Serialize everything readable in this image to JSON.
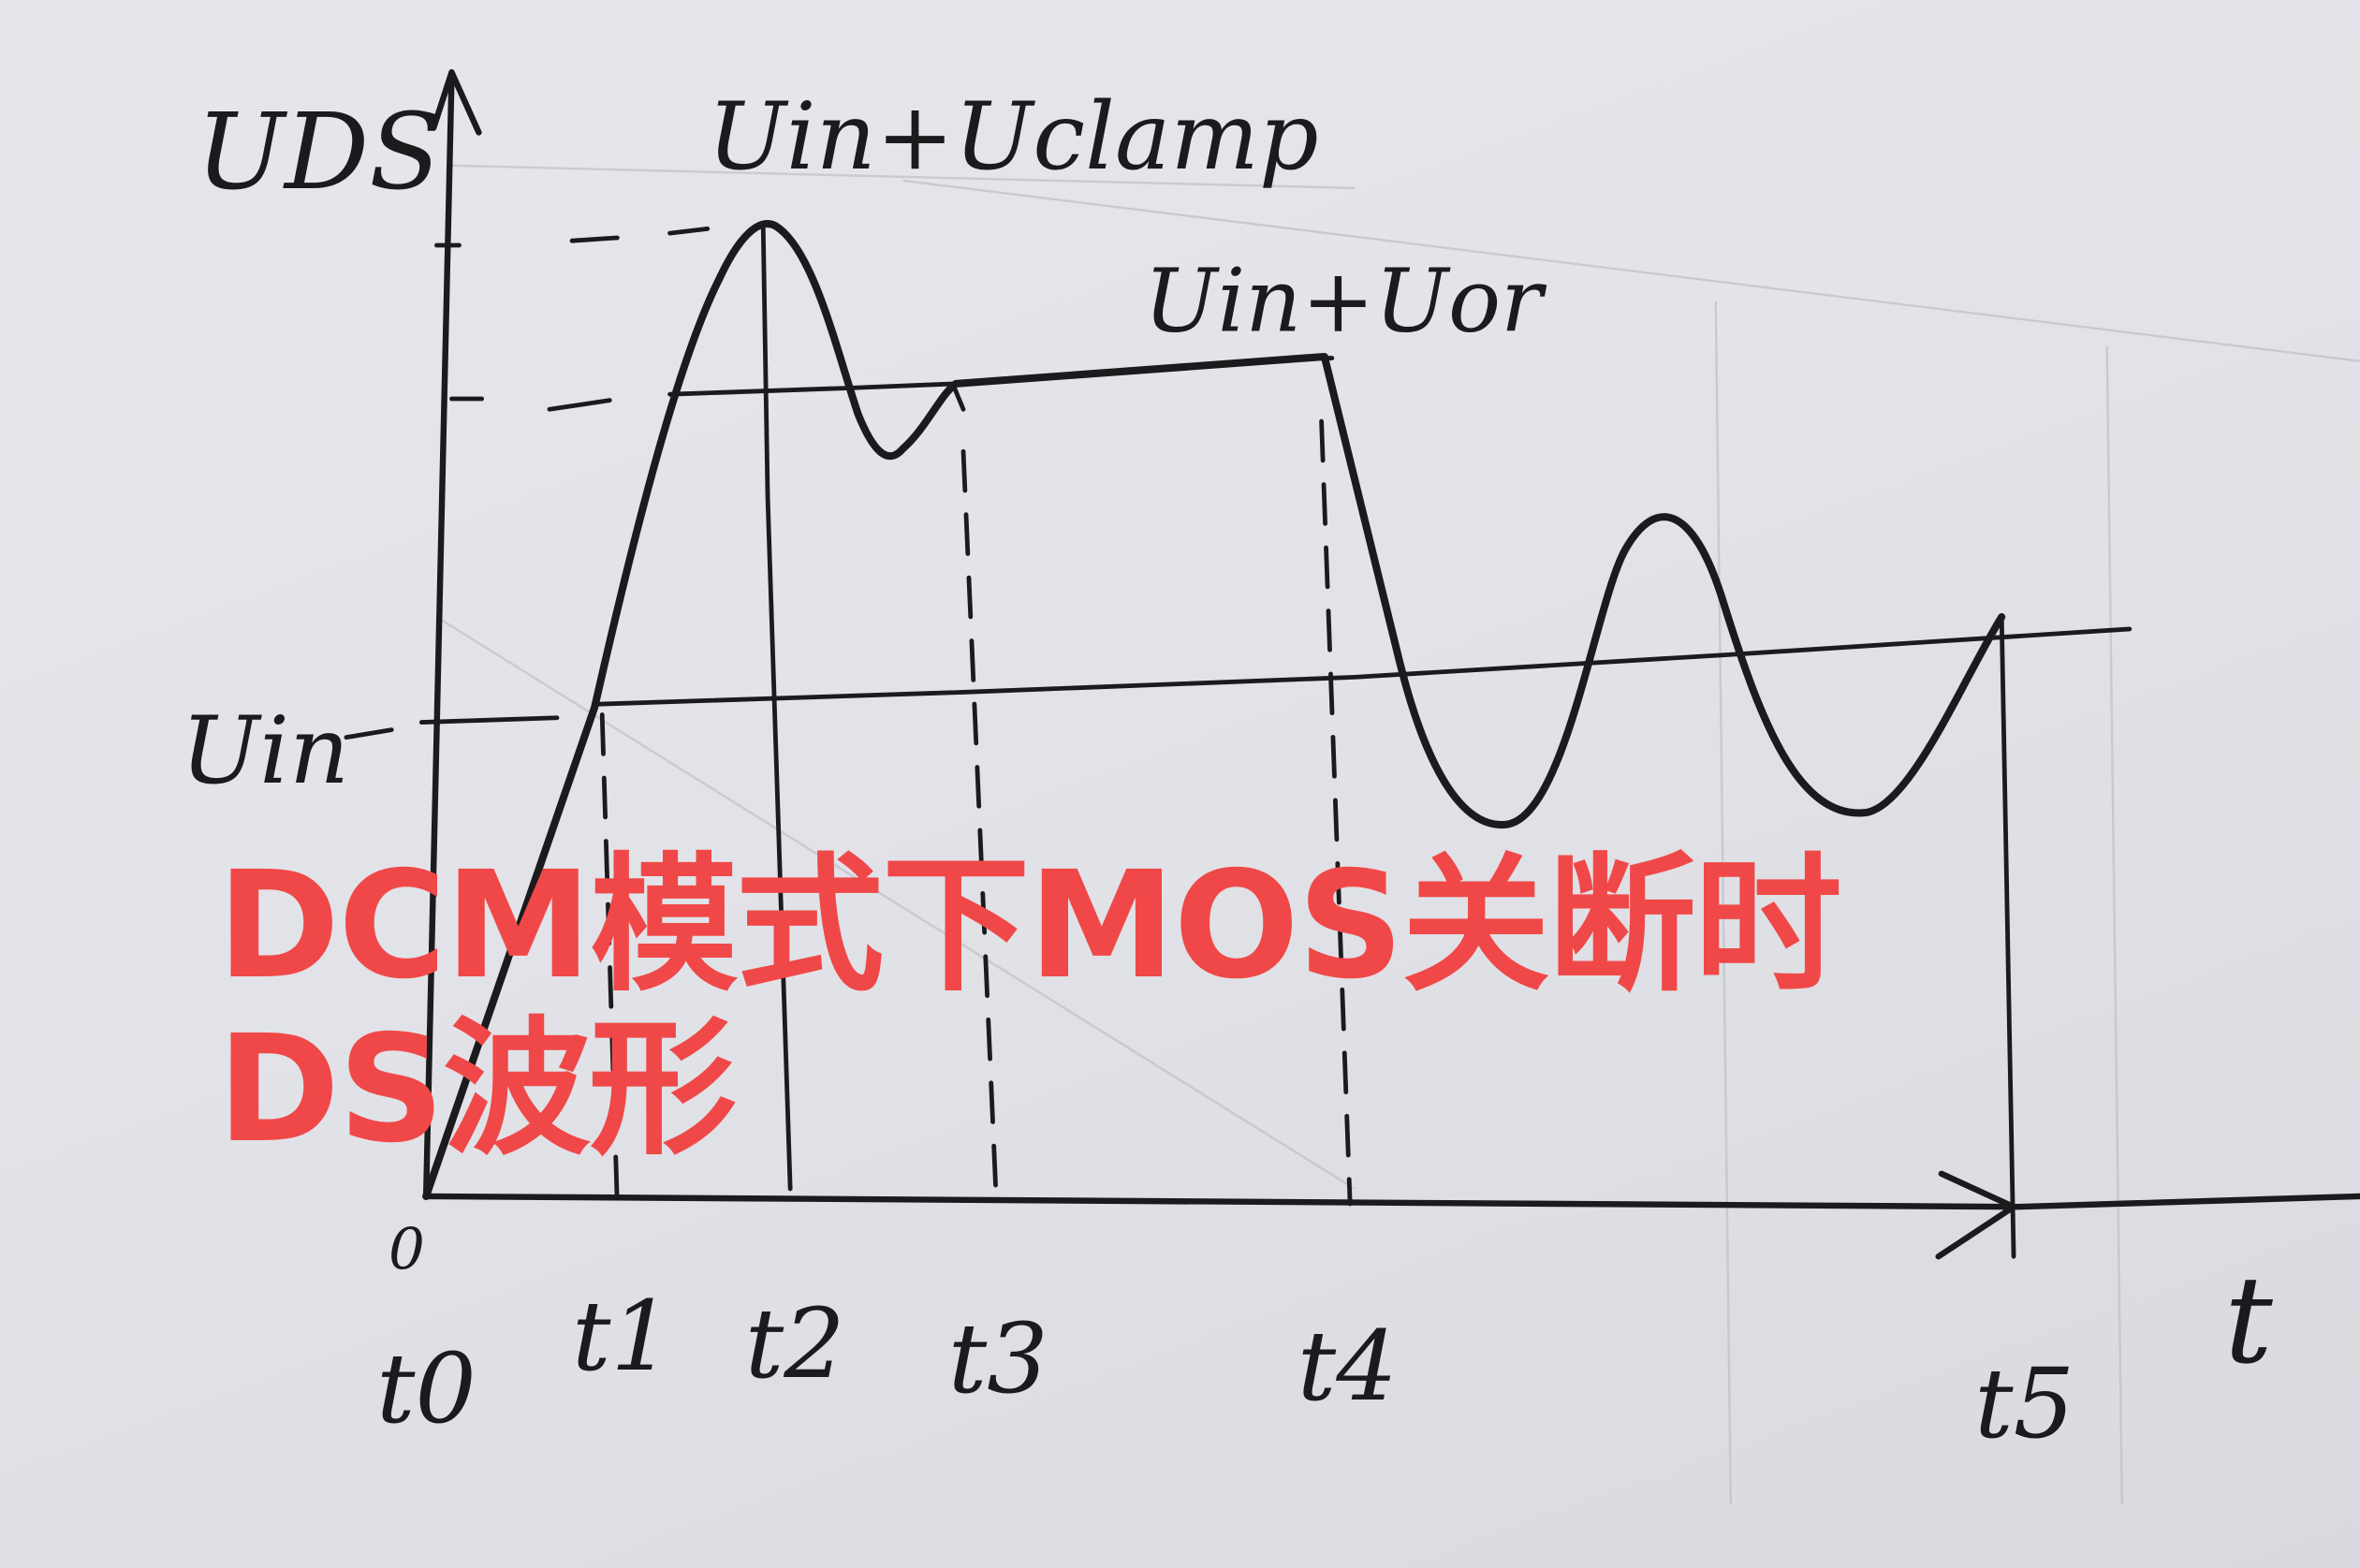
{
  "diagram": {
    "y_axis_label": "UDS",
    "x_axis_label": "t",
    "origin_label": "0",
    "levels": {
      "clamp": "Uin+Uclamp",
      "reflected": "Uin+Uor",
      "input": "Uin"
    },
    "time_marks": [
      "t0",
      "t1",
      "t2",
      "t3",
      "t4",
      "t5"
    ],
    "ink_color": "#1b1b1d"
  },
  "caption": {
    "line1": "DCM模式下MOS关断时",
    "line2": "DS波形",
    "color": "#f04848"
  }
}
